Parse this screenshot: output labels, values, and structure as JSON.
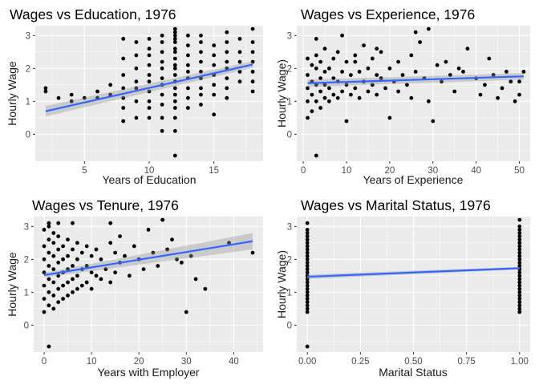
{
  "chart_data": [
    {
      "type": "scatter",
      "title": "Wages vs Education, 1976",
      "xlabel": "Years of Education",
      "ylabel": "Hourly Wage",
      "xlim": [
        1.2,
        18.8
      ],
      "ylim": [
        -0.82,
        3.3
      ],
      "xticks": [
        5,
        10,
        15
      ],
      "yticks": [
        0,
        1,
        2,
        3
      ],
      "grid": true,
      "fit": {
        "x": [
          2,
          18
        ],
        "y": [
          0.7,
          2.12
        ],
        "se_low": [
          0.54,
          2.02
        ],
        "se_high": [
          0.86,
          2.22
        ]
      },
      "points": {
        "x": [
          2,
          2,
          3,
          4,
          4,
          5,
          6,
          6,
          7,
          7,
          8,
          8,
          8,
          8,
          8,
          8,
          8,
          9,
          9,
          9,
          9,
          9,
          9,
          9,
          10,
          10,
          10,
          10,
          10,
          10,
          10,
          10,
          10,
          10,
          11,
          11,
          11,
          11,
          11,
          11,
          11,
          11,
          11,
          11,
          11,
          12,
          12,
          12,
          12,
          12,
          12,
          12,
          12,
          12,
          12,
          12,
          12,
          12,
          12,
          12,
          12,
          12,
          12,
          12,
          13,
          13,
          13,
          13,
          13,
          13,
          13,
          13,
          13,
          14,
          14,
          14,
          14,
          14,
          14,
          14,
          14,
          14,
          15,
          15,
          15,
          15,
          15,
          15,
          15,
          16,
          16,
          16,
          16,
          16,
          16,
          16,
          16,
          17,
          17,
          17,
          17,
          17,
          18,
          18,
          18,
          18,
          18,
          18,
          18
        ],
        "y": [
          1.4,
          1.3,
          1.1,
          1.2,
          1.0,
          1.1,
          1.1,
          1.3,
          1.2,
          1.5,
          0.4,
          0.8,
          1.1,
          1.4,
          1.8,
          2.3,
          2.9,
          0.5,
          1.0,
          1.4,
          1.6,
          2.0,
          2.4,
          2.8,
          0.5,
          0.8,
          1.0,
          1.3,
          1.6,
          1.8,
          2.1,
          2.4,
          2.6,
          2.9,
          0.1,
          0.5,
          0.9,
          1.2,
          1.5,
          1.7,
          2.0,
          2.2,
          2.5,
          2.8,
          3.0,
          -0.65,
          0.1,
          0.5,
          0.8,
          1.0,
          1.2,
          1.4,
          1.6,
          1.8,
          2.0,
          2.1,
          2.3,
          2.5,
          2.6,
          2.8,
          2.9,
          3.0,
          3.1,
          3.2,
          0.8,
          1.1,
          1.4,
          1.7,
          1.9,
          2.1,
          2.4,
          2.7,
          3.0,
          0.9,
          1.2,
          1.4,
          1.7,
          1.9,
          2.2,
          2.5,
          2.8,
          3.0,
          0.6,
          1.2,
          1.5,
          1.8,
          2.1,
          2.4,
          2.7,
          1.1,
          1.4,
          1.7,
          2.0,
          2.2,
          2.5,
          2.8,
          3.1,
          1.6,
          1.9,
          2.2,
          2.5,
          2.9,
          1.3,
          1.6,
          1.9,
          2.2,
          2.5,
          2.8,
          3.2
        ]
      }
    },
    {
      "type": "scatter",
      "title": "Wages vs Experience, 1976",
      "xlabel": "Years of Experience",
      "ylabel": "Hourly Wage)",
      "xlim": [
        -1.5,
        52.5
      ],
      "ylim": [
        -0.82,
        3.3
      ],
      "xticks": [
        0,
        10,
        20,
        30,
        40,
        50
      ],
      "yticks": [
        0,
        1,
        2,
        3
      ],
      "grid": true,
      "fit": {
        "x": [
          1,
          51
        ],
        "y": [
          1.55,
          1.76
        ],
        "se_low": [
          1.44,
          1.66
        ],
        "se_high": [
          1.66,
          1.86
        ]
      },
      "points": {
        "x": [
          1,
          1,
          1,
          1,
          1,
          2,
          2,
          2,
          2,
          3,
          3,
          3,
          3,
          3,
          4,
          4,
          4,
          4,
          5,
          5,
          5,
          5,
          6,
          6,
          6,
          7,
          7,
          7,
          8,
          8,
          8,
          9,
          9,
          9,
          10,
          10,
          10,
          11,
          11,
          12,
          12,
          13,
          13,
          14,
          14,
          15,
          15,
          16,
          16,
          17,
          17,
          18,
          18,
          19,
          20,
          20,
          21,
          22,
          22,
          23,
          24,
          25,
          25,
          26,
          27,
          28,
          29,
          30,
          31,
          32,
          33,
          34,
          35,
          36,
          37,
          38,
          40,
          41,
          42,
          43,
          44,
          45,
          46,
          47,
          48,
          49,
          50,
          50,
          51,
          3,
          26,
          29,
          17,
          12
        ],
        "y": [
          0.5,
          1.0,
          1.4,
          1.8,
          2.3,
          0.7,
          1.2,
          1.6,
          2.1,
          -0.65,
          1.0,
          1.5,
          2.0,
          2.4,
          0.8,
          1.3,
          1.7,
          2.2,
          1.1,
          1.5,
          1.9,
          2.6,
          1.0,
          1.4,
          2.0,
          1.2,
          1.7,
          2.3,
          1.1,
          1.6,
          2.5,
          1.3,
          1.9,
          3.0,
          0.4,
          1.5,
          2.2,
          1.2,
          1.8,
          1.4,
          2.4,
          1.1,
          1.9,
          1.6,
          2.7,
          1.3,
          2.0,
          1.5,
          2.3,
          1.2,
          1.8,
          1.7,
          2.5,
          1.4,
          0.5,
          2.0,
          1.6,
          1.3,
          2.2,
          1.8,
          1.5,
          2.4,
          1.1,
          1.9,
          2.8,
          1.7,
          3.2,
          0.4,
          2.1,
          1.6,
          2.2,
          1.8,
          1.3,
          2.0,
          1.9,
          2.6,
          1.7,
          1.2,
          1.5,
          2.3,
          1.8,
          1.1,
          1.4,
          1.9,
          1.6,
          1.0,
          1.2,
          1.6,
          1.9,
          2.9,
          3.1,
          1.0,
          2.6,
          2.2
        ]
      }
    },
    {
      "type": "scatter",
      "title": "Wages vs Tenure, 1976",
      "xlabel": "Years with Employer",
      "ylabel": "Hourly Wage",
      "xlim": [
        -2.2,
        46.2
      ],
      "ylim": [
        -0.82,
        3.3
      ],
      "xticks": [
        0,
        10,
        20,
        30,
        40
      ],
      "yticks": [
        0,
        1,
        2,
        3
      ],
      "grid": true,
      "fit": {
        "x": [
          0,
          44
        ],
        "y": [
          1.52,
          2.55
        ],
        "se_low": [
          1.45,
          2.3
        ],
        "se_high": [
          1.59,
          2.8
        ]
      },
      "points": {
        "x": [
          0,
          0,
          0,
          0,
          0,
          0,
          0,
          1,
          1,
          1,
          1,
          1,
          1,
          1,
          1,
          2,
          2,
          2,
          2,
          2,
          2,
          2,
          3,
          3,
          3,
          3,
          3,
          3,
          4,
          4,
          4,
          4,
          4,
          5,
          5,
          5,
          5,
          5,
          6,
          6,
          6,
          6,
          7,
          7,
          7,
          7,
          8,
          8,
          8,
          9,
          9,
          9,
          10,
          10,
          10,
          11,
          11,
          12,
          12,
          13,
          14,
          14,
          15,
          15,
          16,
          16,
          17,
          18,
          19,
          20,
          21,
          22,
          23,
          24,
          25,
          26,
          27,
          28,
          29,
          30,
          31,
          32,
          34,
          39,
          44,
          1,
          3,
          6,
          14,
          25
        ],
        "y": [
          0.4,
          0.8,
          1.2,
          1.6,
          2.0,
          2.4,
          2.9,
          -0.65,
          0.6,
          1.0,
          1.4,
          1.8,
          2.2,
          2.6,
          3.0,
          0.5,
          0.9,
          1.3,
          1.7,
          2.1,
          2.5,
          2.8,
          0.7,
          1.1,
          1.5,
          1.9,
          2.3,
          2.7,
          0.8,
          1.2,
          1.6,
          2.0,
          2.4,
          0.9,
          1.3,
          1.7,
          2.1,
          2.6,
          1.0,
          1.4,
          1.8,
          2.3,
          1.1,
          1.5,
          2.0,
          2.5,
          1.2,
          1.7,
          2.2,
          1.3,
          1.8,
          2.4,
          1.1,
          1.6,
          2.1,
          1.5,
          2.3,
          1.4,
          2.0,
          1.7,
          1.3,
          2.5,
          1.6,
          2.2,
          1.9,
          2.7,
          2.1,
          1.5,
          2.4,
          2.0,
          1.7,
          2.9,
          2.2,
          1.8,
          3.2,
          2.3,
          2.6,
          2.0,
          1.9,
          0.4,
          2.1,
          1.4,
          1.1,
          2.5,
          2.2,
          3.1,
          3.1,
          3.1,
          3.1,
          3.2
        ]
      }
    },
    {
      "type": "scatter",
      "title": "Wages vs Marital Status, 1976",
      "xlabel": "Marital Status",
      "ylabel": "Hourly Wage)",
      "xlim": [
        -0.05,
        1.05
      ],
      "ylim": [
        -0.82,
        3.3
      ],
      "xticks": [
        "0.00",
        "0.25",
        "0.50",
        "0.75",
        "1.00"
      ],
      "yticks": [
        0,
        1,
        2,
        3
      ],
      "grid": true,
      "fit": {
        "x": [
          0,
          1
        ],
        "y": [
          1.47,
          1.73
        ],
        "se_low": [
          1.4,
          1.69
        ],
        "se_high": [
          1.54,
          1.77
        ]
      },
      "points": {
        "x": [
          0,
          0,
          0,
          0,
          0,
          0,
          0,
          0,
          0,
          0,
          0,
          0,
          0,
          0,
          0,
          0,
          0,
          0,
          0,
          0,
          0,
          0,
          0,
          0,
          0,
          0,
          0,
          0,
          1,
          1,
          1,
          1,
          1,
          1,
          1,
          1,
          1,
          1,
          1,
          1,
          1,
          1,
          1,
          1,
          1,
          1,
          1,
          1,
          1,
          1,
          1,
          1,
          1,
          1,
          1,
          1
        ],
        "y": [
          -0.65,
          0.4,
          0.5,
          0.6,
          0.7,
          0.8,
          0.9,
          1.0,
          1.1,
          1.2,
          1.3,
          1.4,
          1.5,
          1.6,
          1.7,
          1.8,
          1.9,
          2.0,
          2.1,
          2.2,
          2.3,
          2.4,
          2.5,
          2.6,
          2.7,
          2.8,
          2.9,
          3.1,
          0.4,
          0.5,
          0.6,
          0.7,
          0.8,
          0.9,
          1.0,
          1.1,
          1.2,
          1.3,
          1.4,
          1.5,
          1.6,
          1.7,
          1.8,
          1.9,
          2.0,
          2.1,
          2.2,
          2.3,
          2.4,
          2.5,
          2.6,
          2.7,
          2.8,
          2.9,
          3.0,
          3.2
        ]
      }
    }
  ]
}
